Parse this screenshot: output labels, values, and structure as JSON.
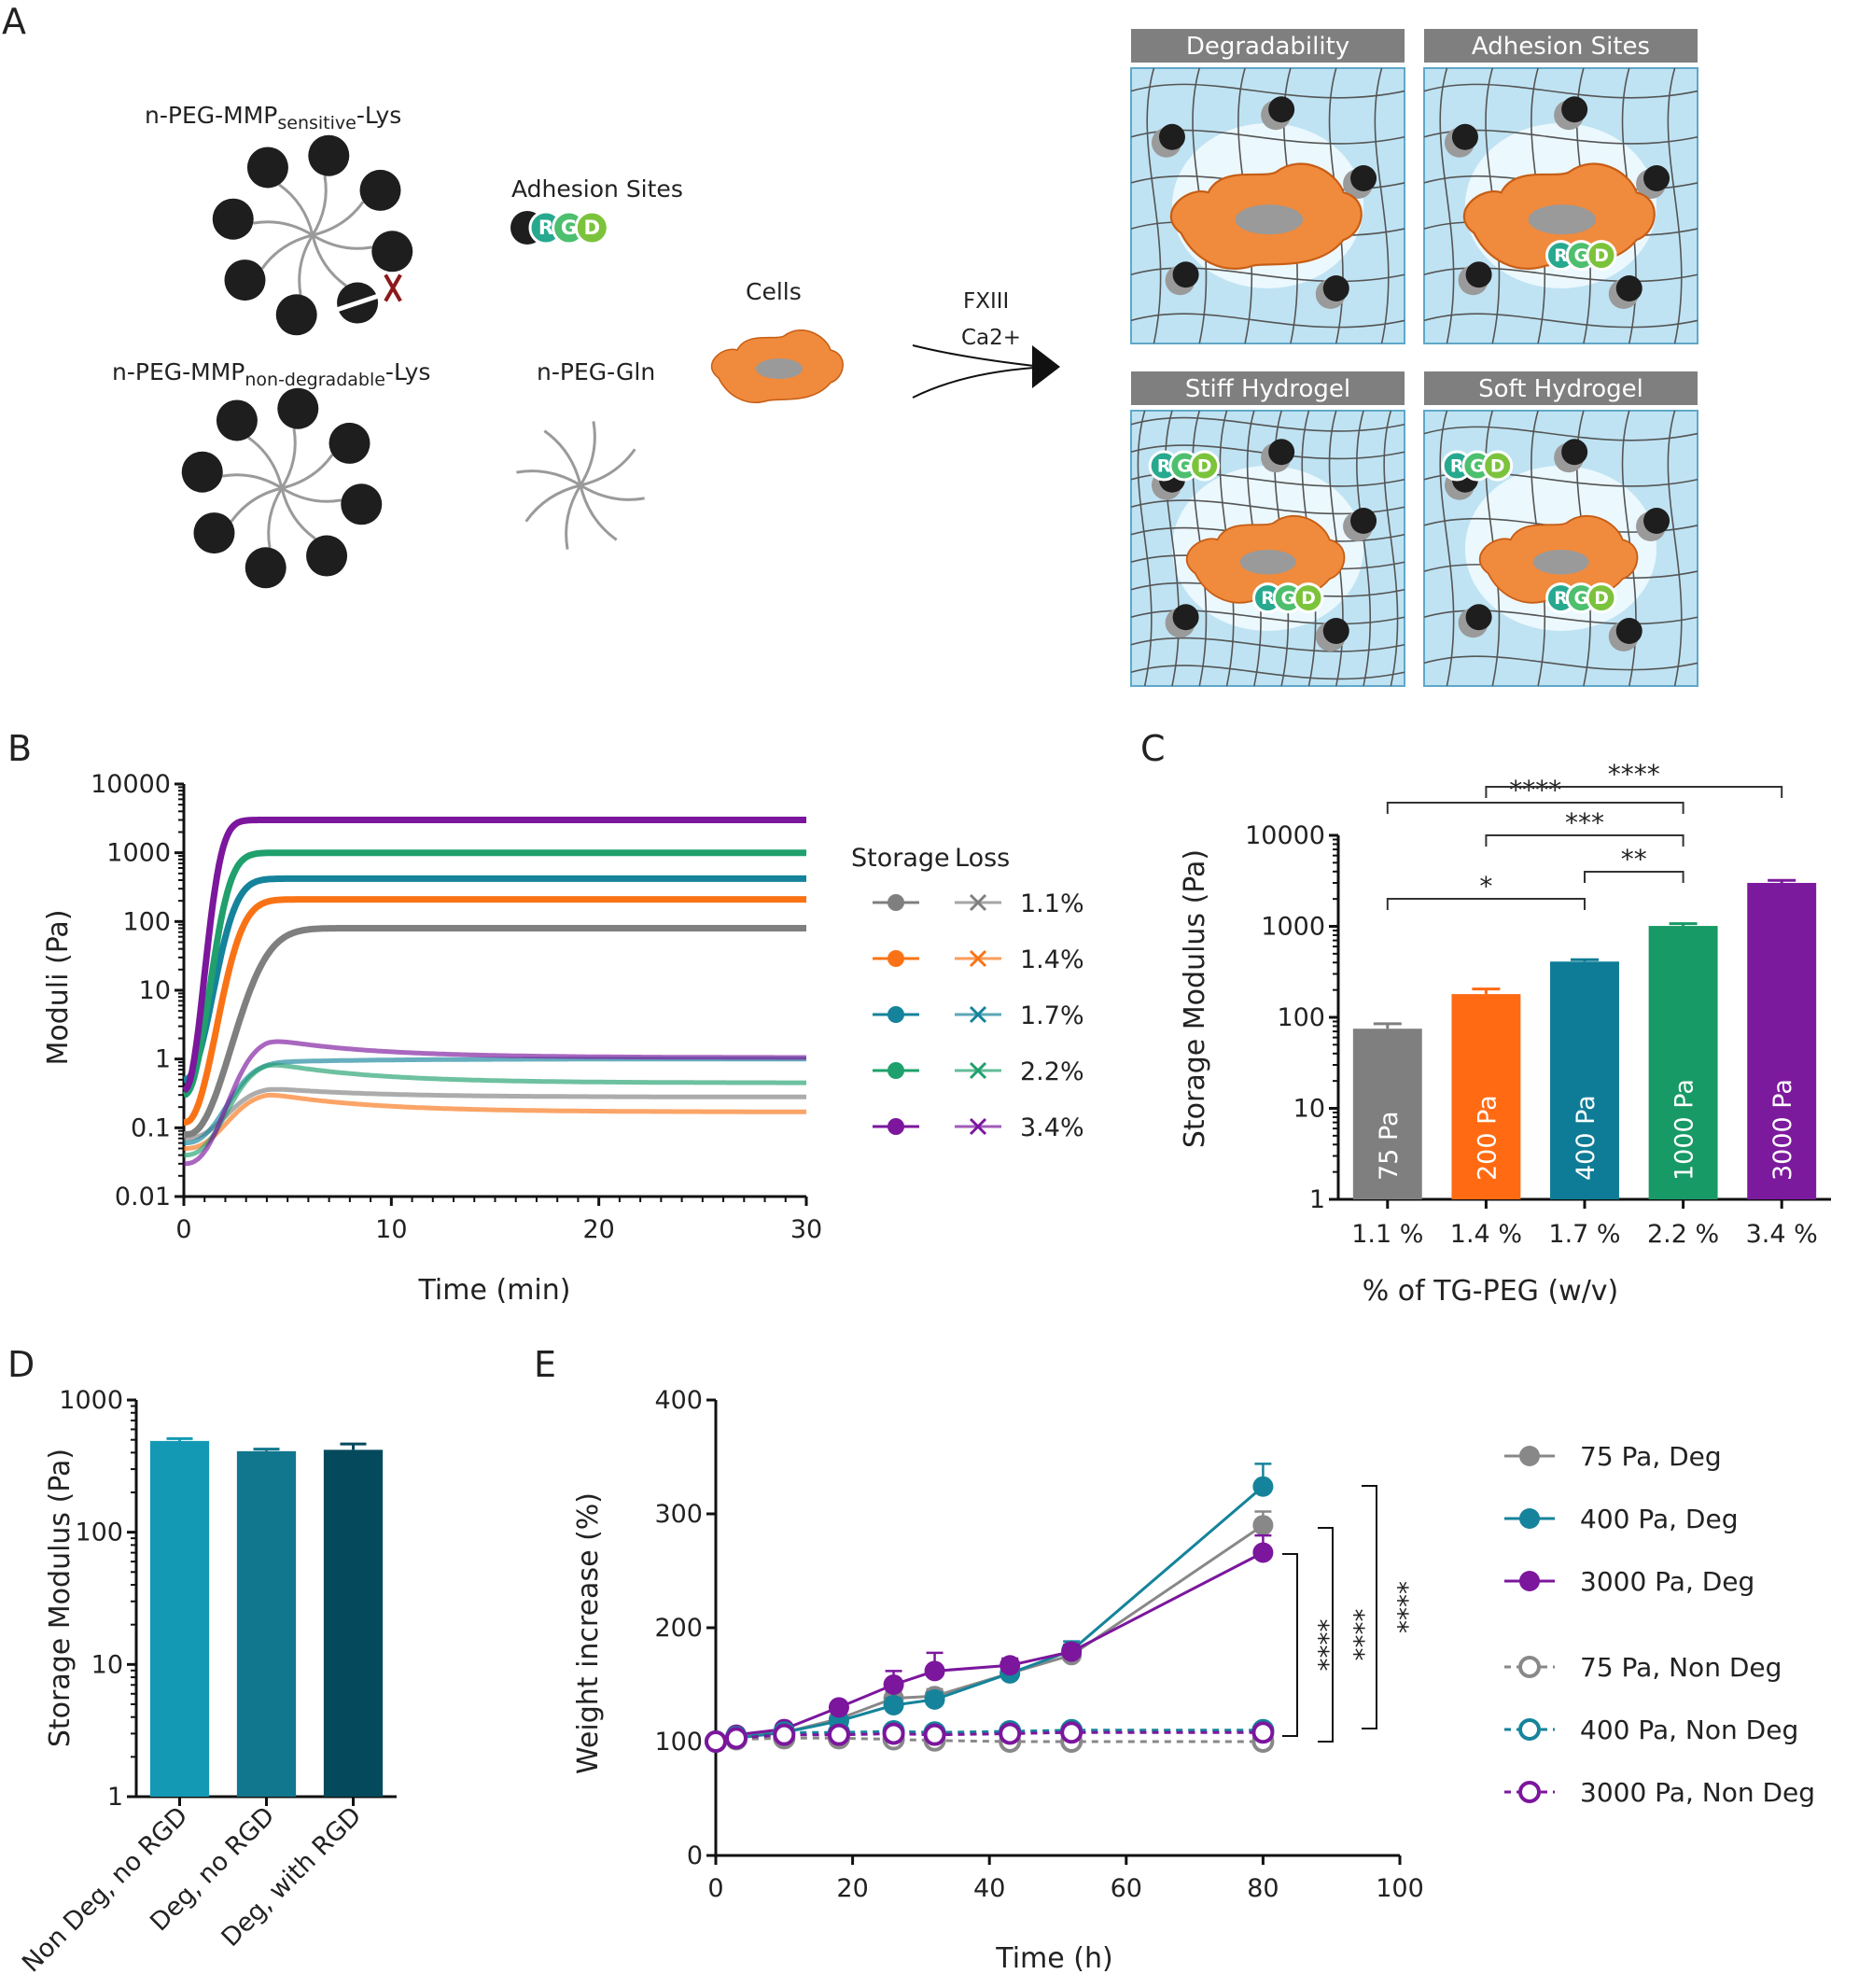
{
  "panel_letters": {
    "a": "A",
    "b": "B",
    "c": "C",
    "d": "D",
    "e": "E"
  },
  "schematic": {
    "mol_sensitive": "n-PEG-MMP",
    "mol_sensitive_sub": "sensitive",
    "mol_suffix": "-Lys",
    "mol_nondeg": "n-PEG-MMP",
    "mol_nondeg_sub": "non-degradable",
    "mol_gln": "n-PEG-Gln",
    "adhesion_label": "Adhesion Sites",
    "rgd": [
      "R",
      "G",
      "D"
    ],
    "cells_label": "Cells",
    "arrow_top": "FXIII",
    "arrow_bottom": "Ca2+",
    "box_titles": [
      "Degradability",
      "Adhesion Sites",
      "Stiff Hydrogel",
      "Soft Hydrogel"
    ],
    "colors": {
      "bead": "#1e1e1e",
      "gln": "#8a8a8a",
      "cell": "#f08a3c",
      "box_title": "#7f7f7f",
      "gel": "#bfe3f3",
      "scissor": "#8b1a1a",
      "r": "#27a98f",
      "g": "#4dbf6e",
      "d": "#7cc33c"
    }
  },
  "chart_data": [
    {
      "panel": "B",
      "type": "line",
      "xlabel": "Time (min)",
      "ylabel": "Moduli (Pa)",
      "xlim": [
        0,
        30
      ],
      "ylim": [
        0.01,
        10000
      ],
      "log_y": true,
      "xticks": [
        "0",
        "10",
        "20",
        "30"
      ],
      "yticks": [
        "0.01",
        "0.1",
        "1",
        "10",
        "100",
        "1000",
        "10000"
      ],
      "legend_headers": [
        "Storage",
        "Loss"
      ],
      "legend_labels": [
        "1.1%",
        "1.4%",
        "1.7%",
        "2.2%",
        "3.4%"
      ],
      "series": [
        {
          "group": "1.1%",
          "color": "#7f7f7f",
          "storage": {
            "t0": 0.15,
            "tau": 2.8,
            "start": 0.08,
            "plateau": 80
          },
          "loss": {
            "start": 0.07,
            "peak": 0.38,
            "end": 0.28
          }
        },
        {
          "group": "1.4%",
          "color": "#f97316",
          "storage": {
            "t0": 0.05,
            "tau": 2.0,
            "start": 0.12,
            "plateau": 210
          },
          "loss": {
            "start": 0.05,
            "peak": 0.32,
            "end": 0.17
          }
        },
        {
          "group": "1.7%",
          "color": "#15839b",
          "storage": {
            "t0": 0.02,
            "tau": 1.8,
            "start": 0.5,
            "plateau": 420
          },
          "loss": {
            "start": 0.06,
            "peak": 0.9,
            "end": 1.0
          }
        },
        {
          "group": "2.2%",
          "color": "#1fa06d",
          "storage": {
            "t0": 0.0,
            "tau": 1.6,
            "start": 0.3,
            "plateau": 1000
          },
          "loss": {
            "start": 0.04,
            "peak": 0.9,
            "end": 0.45
          }
        },
        {
          "group": "3.4%",
          "color": "#7b169d",
          "storage": {
            "t0": 0.0,
            "tau": 1.3,
            "start": 0.35,
            "plateau": 3000
          },
          "loss": {
            "start": 0.03,
            "peak": 2.0,
            "end": 1.05
          }
        }
      ]
    },
    {
      "panel": "C",
      "type": "bar",
      "xlabel": "% of TG-PEG (w/v)",
      "ylabel": "Storage Modulus (Pa)",
      "log_y": true,
      "ylim": [
        1,
        10000
      ],
      "yticks": [
        "1",
        "10",
        "100",
        "1000",
        "10000"
      ],
      "categories": [
        "1.1 %",
        "1.4 %",
        "1.7 %",
        "2.2 %",
        "3.4 %"
      ],
      "values": [
        75,
        180,
        410,
        1010,
        3000
      ],
      "errors": [
        10,
        25,
        20,
        60,
        200
      ],
      "bar_labels": [
        "75  Pa",
        "200 Pa",
        "400 Pa",
        "1000 Pa",
        "3000 Pa"
      ],
      "colors": [
        "#7f7f7f",
        "#ff6a13",
        "#0e7c96",
        "#179a65",
        "#7c1a9d"
      ],
      "significance": [
        {
          "from": 0,
          "to": 2,
          "label": "*"
        },
        {
          "from": 2,
          "to": 3,
          "label": "**"
        },
        {
          "from": 1,
          "to": 3,
          "label": "***"
        },
        {
          "from": 0,
          "to": 3,
          "label": "****"
        },
        {
          "from": 1,
          "to": 4,
          "label": "****"
        }
      ]
    },
    {
      "panel": "D",
      "type": "bar",
      "ylabel": "Storage Modulus (Pa)",
      "log_y": true,
      "ylim": [
        1,
        1000
      ],
      "yticks": [
        "1",
        "10",
        "100",
        "1000"
      ],
      "categories": [
        "Non Deg, no RGD",
        "Deg, no RGD",
        "Deg, with RGD"
      ],
      "values": [
        490,
        410,
        420
      ],
      "errors": [
        20,
        15,
        45
      ],
      "colors": [
        "#1499b5",
        "#11778e",
        "#054a5c"
      ]
    },
    {
      "panel": "E",
      "type": "line",
      "xlabel": "Time (h)",
      "ylabel": "Weight increase (%)",
      "xlim": [
        0,
        100
      ],
      "ylim": [
        0,
        400
      ],
      "xticks": [
        "0",
        "20",
        "40",
        "60",
        "80",
        "100"
      ],
      "yticks": [
        "0",
        "100",
        "200",
        "300",
        "400"
      ],
      "significance_label": "****",
      "series": [
        {
          "name": "75 Pa, Deg",
          "color": "#888888",
          "dashed": false,
          "filled": true,
          "x": [
            0,
            3,
            10,
            18,
            26,
            32,
            43,
            52,
            80
          ],
          "y": [
            100,
            105,
            108,
            120,
            138,
            140,
            160,
            176,
            290
          ],
          "err": [
            0,
            3,
            4,
            4,
            6,
            6,
            5,
            5,
            12
          ]
        },
        {
          "name": "400 Pa, Deg",
          "color": "#15839b",
          "dashed": false,
          "filled": true,
          "x": [
            0,
            3,
            10,
            18,
            26,
            32,
            43,
            52,
            80
          ],
          "y": [
            100,
            103,
            108,
            118,
            132,
            137,
            160,
            180,
            324
          ],
          "err": [
            0,
            3,
            4,
            4,
            6,
            6,
            5,
            8,
            20
          ]
        },
        {
          "name": "3000 Pa, Deg",
          "color": "#7b169d",
          "dashed": false,
          "filled": true,
          "x": [
            0,
            3,
            10,
            18,
            26,
            32,
            43,
            52,
            80
          ],
          "y": [
            100,
            106,
            111,
            130,
            150,
            162,
            167,
            179,
            266
          ],
          "err": [
            0,
            3,
            4,
            4,
            12,
            16,
            6,
            6,
            15
          ]
        },
        {
          "name": "75 Pa, Non Deg",
          "color": "#888888",
          "dashed": true,
          "filled": false,
          "x": [
            0,
            3,
            10,
            18,
            26,
            32,
            43,
            52,
            80
          ],
          "y": [
            100,
            102,
            103,
            103,
            102,
            101,
            100,
            100,
            100
          ],
          "err": [
            0,
            2,
            2,
            2,
            2,
            2,
            2,
            2,
            2
          ]
        },
        {
          "name": "400 Pa, Non Deg",
          "color": "#15839b",
          "dashed": true,
          "filled": false,
          "x": [
            0,
            3,
            10,
            18,
            26,
            32,
            43,
            52,
            80
          ],
          "y": [
            100,
            104,
            108,
            108,
            109,
            108,
            109,
            110,
            110
          ],
          "err": [
            0,
            2,
            2,
            2,
            2,
            2,
            2,
            2,
            2
          ]
        },
        {
          "name": "3000 Pa, Non Deg",
          "color": "#7b169d",
          "dashed": true,
          "filled": false,
          "x": [
            0,
            3,
            10,
            18,
            26,
            32,
            43,
            52,
            80
          ],
          "y": [
            100,
            103,
            106,
            106,
            107,
            106,
            107,
            108,
            108
          ],
          "err": [
            0,
            2,
            2,
            2,
            2,
            2,
            2,
            2,
            2
          ]
        }
      ]
    }
  ]
}
